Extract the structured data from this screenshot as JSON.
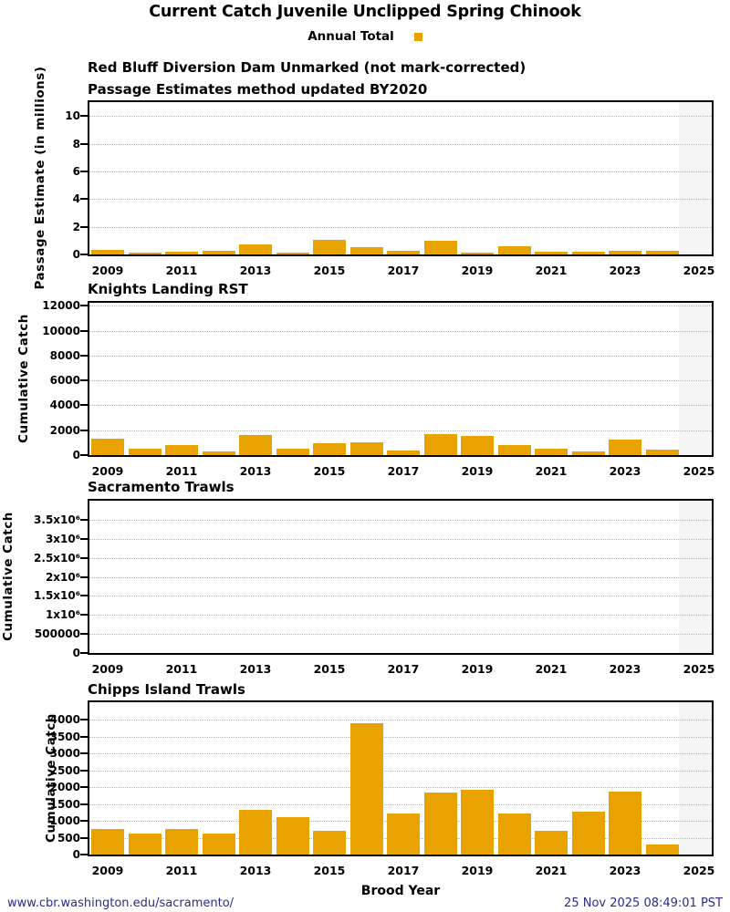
{
  "title": "Current Catch Juvenile Unclipped Spring Chinook",
  "legend": {
    "label": "Annual Total"
  },
  "colors": {
    "bar": "#E8A202",
    "grid": "#b8b8b8",
    "future_band": "#f5f5f5",
    "footer_text": "#2b2b8f"
  },
  "future_band_start_year": 2024.45,
  "footer": {
    "xlabel": "Brood Year",
    "url": "www.cbr.washington.edu/sacramento/",
    "timestamp": "25 Nov 2025 08:49:01 PST"
  },
  "chart_data": [
    {
      "type": "bar",
      "title": "Red Bluff Diversion Dam Unmarked (not mark-corrected)",
      "subtitle": "Passage Estimates method updated BY2020",
      "ylabel": "Passage Estimate (in millions)",
      "xlabel": "Brood Year",
      "x": [
        2009,
        2010,
        2011,
        2012,
        2013,
        2014,
        2015,
        2016,
        2017,
        2018,
        2019,
        2020,
        2021,
        2022,
        2023,
        2024
      ],
      "values": [
        0.3,
        0.15,
        0.2,
        0.28,
        0.75,
        0.13,
        1.05,
        0.5,
        0.25,
        1.0,
        0.13,
        0.58,
        0.2,
        0.2,
        0.28,
        0.28
      ],
      "ylim": [
        0,
        11
      ],
      "ytick_values": [
        0,
        2,
        4,
        6,
        8,
        10
      ],
      "ytick_labels": [
        "0",
        "2",
        "4",
        "6",
        "8",
        "10"
      ],
      "xtick_values": [
        2009,
        2011,
        2013,
        2015,
        2017,
        2019,
        2021,
        2023,
        2025
      ],
      "xtick_labels": [
        "2009",
        "2011",
        "2013",
        "2015",
        "2017",
        "2019",
        "2021",
        "2023",
        "2025"
      ],
      "grid": true,
      "legend_position": "top-center"
    },
    {
      "type": "bar",
      "title": "Knights Landing RST",
      "ylabel": "Cumulative Catch",
      "xlabel": "Brood Year",
      "x": [
        2009,
        2010,
        2011,
        2012,
        2013,
        2014,
        2015,
        2016,
        2017,
        2018,
        2019,
        2020,
        2021,
        2022,
        2023,
        2024
      ],
      "values": [
        1350,
        550,
        820,
        330,
        1620,
        550,
        970,
        1050,
        400,
        1670,
        1520,
        820,
        550,
        310,
        1270,
        470
      ],
      "ylim": [
        0,
        12240
      ],
      "ytick_values": [
        0,
        2000,
        4000,
        6000,
        8000,
        10000,
        12000
      ],
      "ytick_labels": [
        "0",
        "2000",
        "4000",
        "6000",
        "8000",
        "10000",
        "12000"
      ],
      "xtick_values": [
        2009,
        2011,
        2013,
        2015,
        2017,
        2019,
        2021,
        2023,
        2025
      ],
      "xtick_labels": [
        "2009",
        "2011",
        "2013",
        "2015",
        "2017",
        "2019",
        "2021",
        "2023",
        "2025"
      ],
      "grid": true
    },
    {
      "type": "bar",
      "title": "Sacramento Trawls",
      "ylabel": "Cumulative Catch",
      "xlabel": "Brood Year",
      "x": [],
      "values": [],
      "ylim": [
        0,
        4000000
      ],
      "ytick_values": [
        0,
        500000,
        1000000,
        1500000,
        2000000,
        2500000,
        3000000,
        3500000
      ],
      "ytick_labels": [
        "0",
        "500000",
        "1x10⁶",
        "1.5x10⁶",
        "2x10⁶",
        "2.5x10⁶",
        "3x10⁶",
        "3.5x10⁶"
      ],
      "xtick_values": [
        2009,
        2011,
        2013,
        2015,
        2017,
        2019,
        2021,
        2023,
        2025
      ],
      "xtick_labels": [
        "2009",
        "2011",
        "2013",
        "2015",
        "2017",
        "2019",
        "2021",
        "2023",
        "2025"
      ],
      "grid": true
    },
    {
      "type": "bar",
      "title": "Chipps Island Trawls",
      "ylabel": "Cumulative Catch",
      "xlabel": "Brood Year",
      "x": [
        2009,
        2010,
        2011,
        2012,
        2013,
        2014,
        2015,
        2016,
        2017,
        2018,
        2019,
        2020,
        2021,
        2022,
        2023,
        2024
      ],
      "values": [
        770,
        620,
        770,
        620,
        1330,
        1120,
        700,
        3900,
        1230,
        1830,
        1930,
        1230,
        700,
        1280,
        1880,
        300
      ],
      "ylim": [
        0,
        4520
      ],
      "ytick_values": [
        0,
        500,
        1000,
        1500,
        2000,
        2500,
        3000,
        3500,
        4000
      ],
      "ytick_labels": [
        "0",
        "500",
        "1000",
        "1500",
        "2000",
        "2500",
        "3000",
        "3500",
        "4000"
      ],
      "xtick_values": [
        2009,
        2011,
        2013,
        2015,
        2017,
        2019,
        2021,
        2023,
        2025
      ],
      "xtick_labels": [
        "2009",
        "2011",
        "2013",
        "2015",
        "2017",
        "2019",
        "2021",
        "2023",
        "2025"
      ],
      "grid": true
    }
  ]
}
